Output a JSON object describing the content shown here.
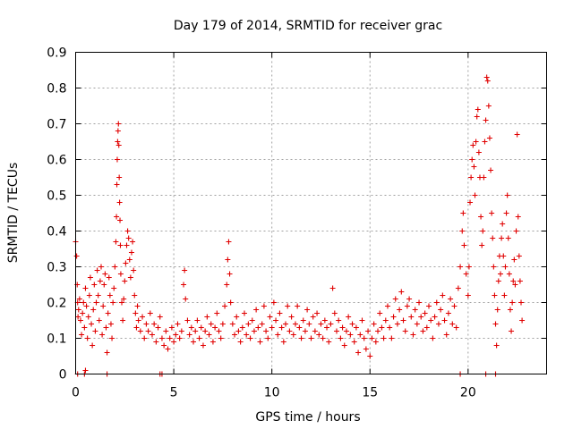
{
  "chart_data": {
    "type": "scatter",
    "title": "Day 179 of 2014, SRMTID for receiver grac",
    "xlabel": "GPS time / hours",
    "ylabel": "SRMTID / TECUs",
    "xlim": [
      0,
      24
    ],
    "ylim": [
      0,
      0.9
    ],
    "xticks": [
      0,
      5,
      10,
      15,
      20
    ],
    "xtick_labels": [
      "0",
      "5",
      "10",
      "15",
      "20"
    ],
    "yticks": [
      0,
      0.1,
      0.2,
      0.3,
      0.4,
      0.5,
      0.6,
      0.7,
      0.8,
      0.9
    ],
    "ytick_labels": [
      "0",
      "0.1",
      "0.2",
      "0.3",
      "0.4",
      "0.5",
      "0.6",
      "0.7",
      "0.8",
      "0.9"
    ],
    "grid": true,
    "marker": "+",
    "color": "#e00000",
    "series": [
      {
        "name": "SRMTID",
        "points": [
          [
            0.0,
            0.37
          ],
          [
            0.05,
            0.33
          ],
          [
            0.08,
            0.25
          ],
          [
            0.1,
            0.2
          ],
          [
            0.12,
            0.16
          ],
          [
            0.15,
            0.18
          ],
          [
            0.2,
            0.21
          ],
          [
            0.25,
            0.15
          ],
          [
            0.3,
            0.11
          ],
          [
            0.35,
            0.17
          ],
          [
            0.4,
            0.2
          ],
          [
            0.45,
            0.13
          ],
          [
            0.5,
            0.24
          ],
          [
            0.55,
            0.19
          ],
          [
            0.6,
            0.1
          ],
          [
            0.65,
            0.16
          ],
          [
            0.7,
            0.22
          ],
          [
            0.75,
            0.27
          ],
          [
            0.8,
            0.14
          ],
          [
            0.85,
            0.08
          ],
          [
            0.9,
            0.18
          ],
          [
            0.95,
            0.25
          ],
          [
            1.0,
            0.12
          ],
          [
            1.05,
            0.2
          ],
          [
            1.1,
            0.29
          ],
          [
            1.15,
            0.22
          ],
          [
            1.2,
            0.15
          ],
          [
            1.25,
            0.26
          ],
          [
            1.3,
            0.3
          ],
          [
            1.35,
            0.11
          ],
          [
            1.4,
            0.19
          ],
          [
            1.45,
            0.25
          ],
          [
            1.5,
            0.28
          ],
          [
            1.55,
            0.13
          ],
          [
            1.6,
            0.06
          ],
          [
            1.65,
            0.17
          ],
          [
            1.7,
            0.27
          ],
          [
            1.75,
            0.22
          ],
          [
            1.8,
            0.14
          ],
          [
            1.85,
            0.1
          ],
          [
            1.9,
            0.2
          ],
          [
            1.95,
            0.24
          ],
          [
            2.0,
            0.3
          ],
          [
            2.05,
            0.37
          ],
          [
            2.08,
            0.44
          ],
          [
            2.1,
            0.53
          ],
          [
            2.12,
            0.6
          ],
          [
            2.14,
            0.65
          ],
          [
            2.16,
            0.68
          ],
          [
            2.18,
            0.7
          ],
          [
            2.2,
            0.64
          ],
          [
            2.22,
            0.55
          ],
          [
            2.24,
            0.48
          ],
          [
            2.26,
            0.43
          ],
          [
            2.28,
            0.36
          ],
          [
            2.3,
            0.28
          ],
          [
            2.35,
            0.2
          ],
          [
            2.4,
            0.15
          ],
          [
            2.45,
            0.21
          ],
          [
            2.5,
            0.26
          ],
          [
            2.55,
            0.31
          ],
          [
            2.6,
            0.36
          ],
          [
            2.65,
            0.4
          ],
          [
            2.7,
            0.38
          ],
          [
            2.75,
            0.32
          ],
          [
            2.8,
            0.27
          ],
          [
            2.85,
            0.34
          ],
          [
            2.9,
            0.37
          ],
          [
            2.95,
            0.29
          ],
          [
            3.0,
            0.22
          ],
          [
            3.05,
            0.17
          ],
          [
            3.1,
            0.13
          ],
          [
            3.15,
            0.19
          ],
          [
            3.2,
            0.15
          ],
          [
            3.3,
            0.12
          ],
          [
            3.4,
            0.16
          ],
          [
            3.5,
            0.1
          ],
          [
            3.6,
            0.14
          ],
          [
            3.7,
            0.12
          ],
          [
            3.8,
            0.17
          ],
          [
            3.9,
            0.11
          ],
          [
            4.0,
            0.14
          ],
          [
            4.1,
            0.09
          ],
          [
            4.2,
            0.13
          ],
          [
            4.3,
            0.16
          ],
          [
            4.4,
            0.1
          ],
          [
            4.5,
            0.08
          ],
          [
            4.6,
            0.12
          ],
          [
            4.7,
            0.07
          ],
          [
            4.8,
            0.1
          ],
          [
            4.9,
            0.13
          ],
          [
            5.0,
            0.09
          ],
          [
            5.1,
            0.11
          ],
          [
            5.2,
            0.14
          ],
          [
            5.3,
            0.1
          ],
          [
            5.4,
            0.12
          ],
          [
            5.5,
            0.25
          ],
          [
            5.55,
            0.29
          ],
          [
            5.6,
            0.21
          ],
          [
            5.7,
            0.15
          ],
          [
            5.8,
            0.11
          ],
          [
            5.9,
            0.13
          ],
          [
            6.0,
            0.09
          ],
          [
            6.1,
            0.12
          ],
          [
            6.2,
            0.15
          ],
          [
            6.3,
            0.1
          ],
          [
            6.4,
            0.13
          ],
          [
            6.5,
            0.08
          ],
          [
            6.6,
            0.12
          ],
          [
            6.7,
            0.16
          ],
          [
            6.8,
            0.11
          ],
          [
            6.9,
            0.14
          ],
          [
            7.0,
            0.09
          ],
          [
            7.1,
            0.13
          ],
          [
            7.2,
            0.17
          ],
          [
            7.3,
            0.12
          ],
          [
            7.4,
            0.1
          ],
          [
            7.5,
            0.14
          ],
          [
            7.6,
            0.19
          ],
          [
            7.7,
            0.25
          ],
          [
            7.75,
            0.32
          ],
          [
            7.8,
            0.37
          ],
          [
            7.85,
            0.28
          ],
          [
            7.9,
            0.2
          ],
          [
            8.0,
            0.14
          ],
          [
            8.1,
            0.11
          ],
          [
            8.2,
            0.16
          ],
          [
            8.3,
            0.12
          ],
          [
            8.4,
            0.09
          ],
          [
            8.5,
            0.13
          ],
          [
            8.6,
            0.17
          ],
          [
            8.7,
            0.11
          ],
          [
            8.8,
            0.14
          ],
          [
            8.9,
            0.1
          ],
          [
            9.0,
            0.15
          ],
          [
            9.1,
            0.12
          ],
          [
            9.2,
            0.18
          ],
          [
            9.3,
            0.13
          ],
          [
            9.4,
            0.09
          ],
          [
            9.5,
            0.14
          ],
          [
            9.6,
            0.19
          ],
          [
            9.7,
            0.12
          ],
          [
            9.8,
            0.1
          ],
          [
            9.9,
            0.16
          ],
          [
            10.0,
            0.13
          ],
          [
            10.1,
            0.2
          ],
          [
            10.2,
            0.15
          ],
          [
            10.3,
            0.11
          ],
          [
            10.4,
            0.17
          ],
          [
            10.5,
            0.13
          ],
          [
            10.6,
            0.09
          ],
          [
            10.7,
            0.14
          ],
          [
            10.8,
            0.19
          ],
          [
            10.9,
            0.12
          ],
          [
            11.0,
            0.16
          ],
          [
            11.1,
            0.11
          ],
          [
            11.2,
            0.14
          ],
          [
            11.3,
            0.19
          ],
          [
            11.4,
            0.13
          ],
          [
            11.5,
            0.1
          ],
          [
            11.6,
            0.15
          ],
          [
            11.7,
            0.12
          ],
          [
            11.8,
            0.18
          ],
          [
            11.9,
            0.14
          ],
          [
            12.0,
            0.1
          ],
          [
            12.1,
            0.16
          ],
          [
            12.2,
            0.12
          ],
          [
            12.3,
            0.17
          ],
          [
            12.4,
            0.11
          ],
          [
            12.5,
            0.14
          ],
          [
            12.6,
            0.1
          ],
          [
            12.7,
            0.15
          ],
          [
            12.8,
            0.13
          ],
          [
            12.9,
            0.09
          ],
          [
            13.0,
            0.14
          ],
          [
            13.1,
            0.24
          ],
          [
            13.2,
            0.17
          ],
          [
            13.3,
            0.12
          ],
          [
            13.4,
            0.15
          ],
          [
            13.5,
            0.1
          ],
          [
            13.6,
            0.13
          ],
          [
            13.7,
            0.08
          ],
          [
            13.8,
            0.12
          ],
          [
            13.9,
            0.16
          ],
          [
            14.0,
            0.11
          ],
          [
            14.1,
            0.14
          ],
          [
            14.2,
            0.09
          ],
          [
            14.3,
            0.13
          ],
          [
            14.4,
            0.06
          ],
          [
            14.5,
            0.11
          ],
          [
            14.6,
            0.15
          ],
          [
            14.7,
            0.1
          ],
          [
            14.8,
            0.07
          ],
          [
            14.9,
            0.12
          ],
          [
            15.0,
            0.05
          ],
          [
            15.1,
            0.1
          ],
          [
            15.2,
            0.14
          ],
          [
            15.3,
            0.09
          ],
          [
            15.4,
            0.12
          ],
          [
            15.5,
            0.17
          ],
          [
            15.6,
            0.13
          ],
          [
            15.7,
            0.1
          ],
          [
            15.8,
            0.15
          ],
          [
            15.9,
            0.19
          ],
          [
            16.0,
            0.13
          ],
          [
            16.1,
            0.1
          ],
          [
            16.2,
            0.16
          ],
          [
            16.3,
            0.21
          ],
          [
            16.4,
            0.14
          ],
          [
            16.5,
            0.18
          ],
          [
            16.6,
            0.23
          ],
          [
            16.7,
            0.15
          ],
          [
            16.8,
            0.12
          ],
          [
            16.9,
            0.19
          ],
          [
            17.0,
            0.21
          ],
          [
            17.1,
            0.16
          ],
          [
            17.2,
            0.11
          ],
          [
            17.3,
            0.18
          ],
          [
            17.4,
            0.14
          ],
          [
            17.5,
            0.2
          ],
          [
            17.6,
            0.16
          ],
          [
            17.7,
            0.12
          ],
          [
            17.8,
            0.17
          ],
          [
            17.9,
            0.13
          ],
          [
            18.0,
            0.19
          ],
          [
            18.1,
            0.15
          ],
          [
            18.2,
            0.1
          ],
          [
            18.3,
            0.16
          ],
          [
            18.4,
            0.2
          ],
          [
            18.5,
            0.14
          ],
          [
            18.6,
            0.18
          ],
          [
            18.7,
            0.22
          ],
          [
            18.8,
            0.15
          ],
          [
            18.9,
            0.11
          ],
          [
            19.0,
            0.17
          ],
          [
            19.1,
            0.21
          ],
          [
            19.2,
            0.14
          ],
          [
            19.3,
            0.19
          ],
          [
            19.4,
            0.13
          ],
          [
            19.5,
            0.24
          ],
          [
            19.6,
            0.3
          ],
          [
            19.7,
            0.4
          ],
          [
            19.75,
            0.45
          ],
          [
            19.8,
            0.36
          ],
          [
            19.9,
            0.28
          ],
          [
            20.0,
            0.22
          ],
          [
            20.05,
            0.3
          ],
          [
            20.1,
            0.48
          ],
          [
            20.15,
            0.55
          ],
          [
            20.2,
            0.6
          ],
          [
            20.25,
            0.64
          ],
          [
            20.3,
            0.58
          ],
          [
            20.35,
            0.5
          ],
          [
            20.4,
            0.65
          ],
          [
            20.45,
            0.72
          ],
          [
            20.5,
            0.74
          ],
          [
            20.55,
            0.62
          ],
          [
            20.6,
            0.55
          ],
          [
            20.65,
            0.44
          ],
          [
            20.7,
            0.36
          ],
          [
            20.75,
            0.4
          ],
          [
            20.8,
            0.55
          ],
          [
            20.85,
            0.65
          ],
          [
            20.9,
            0.71
          ],
          [
            20.95,
            0.83
          ],
          [
            21.0,
            0.82
          ],
          [
            21.05,
            0.75
          ],
          [
            21.1,
            0.66
          ],
          [
            21.15,
            0.57
          ],
          [
            21.2,
            0.45
          ],
          [
            21.25,
            0.38
          ],
          [
            21.3,
            0.3
          ],
          [
            21.35,
            0.22
          ],
          [
            21.4,
            0.14
          ],
          [
            21.45,
            0.08
          ],
          [
            21.5,
            0.18
          ],
          [
            21.55,
            0.26
          ],
          [
            21.6,
            0.33
          ],
          [
            21.65,
            0.28
          ],
          [
            21.7,
            0.38
          ],
          [
            21.75,
            0.42
          ],
          [
            21.8,
            0.33
          ],
          [
            21.85,
            0.22
          ],
          [
            21.9,
            0.3
          ],
          [
            21.95,
            0.45
          ],
          [
            22.0,
            0.5
          ],
          [
            22.05,
            0.38
          ],
          [
            22.1,
            0.28
          ],
          [
            22.15,
            0.18
          ],
          [
            22.2,
            0.12
          ],
          [
            22.25,
            0.2
          ],
          [
            22.3,
            0.26
          ],
          [
            22.35,
            0.32
          ],
          [
            22.4,
            0.25
          ],
          [
            22.45,
            0.4
          ],
          [
            22.5,
            0.67
          ],
          [
            22.55,
            0.44
          ],
          [
            22.6,
            0.33
          ],
          [
            22.65,
            0.26
          ],
          [
            22.7,
            0.2
          ],
          [
            22.75,
            0.15
          ],
          [
            0.1,
            0.0
          ],
          [
            0.45,
            0.0
          ],
          [
            0.5,
            0.01
          ],
          [
            1.6,
            0.0
          ],
          [
            4.3,
            0.0
          ],
          [
            4.4,
            0.0
          ],
          [
            19.6,
            0.0
          ],
          [
            20.9,
            0.0
          ],
          [
            21.4,
            0.0
          ]
        ]
      }
    ]
  }
}
